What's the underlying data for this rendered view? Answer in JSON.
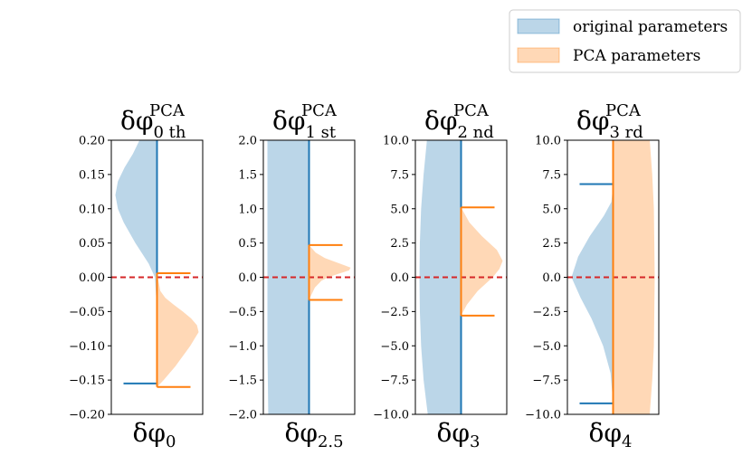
{
  "chart_data": [
    {
      "type": "violin",
      "title": {
        "base": "δφ",
        "sub": "0 th",
        "sup": "PCA"
      },
      "xlabel": {
        "base": "δφ",
        "sub": "0"
      },
      "ylim": [
        -0.2,
        0.2
      ],
      "yticks": [
        -0.2,
        -0.15,
        -0.1,
        -0.05,
        0.0,
        0.05,
        0.1,
        0.15,
        0.2
      ],
      "ytick_labels": [
        "−0.20",
        "−0.15",
        "−0.10",
        "−0.05",
        "0.00",
        "0.05",
        "0.10",
        "0.15",
        "0.20"
      ],
      "reference_line": 0.0,
      "original": {
        "min": -0.155,
        "max": 0.2,
        "profile": [
          [
            -0.165,
            0.0
          ],
          [
            -0.15,
            0.0
          ],
          [
            -0.1,
            0.0
          ],
          [
            -0.05,
            0.0
          ],
          [
            0.0,
            0.05
          ],
          [
            0.02,
            0.2
          ],
          [
            0.05,
            0.52
          ],
          [
            0.08,
            0.8
          ],
          [
            0.1,
            0.94
          ],
          [
            0.12,
            1.0
          ],
          [
            0.14,
            0.94
          ],
          [
            0.16,
            0.78
          ],
          [
            0.18,
            0.58
          ],
          [
            0.2,
            0.42
          ]
        ]
      },
      "pca": {
        "min": -0.16,
        "max": 0.006,
        "profile": [
          [
            -0.16,
            0.0
          ],
          [
            -0.15,
            0.16
          ],
          [
            -0.14,
            0.3
          ],
          [
            -0.13,
            0.44
          ],
          [
            -0.12,
            0.56
          ],
          [
            -0.11,
            0.68
          ],
          [
            -0.1,
            0.8
          ],
          [
            -0.09,
            0.9
          ],
          [
            -0.08,
            1.0
          ],
          [
            -0.07,
            0.96
          ],
          [
            -0.06,
            0.82
          ],
          [
            -0.05,
            0.62
          ],
          [
            -0.04,
            0.4
          ],
          [
            -0.03,
            0.2
          ],
          [
            -0.02,
            0.08
          ],
          [
            0.006,
            0.0
          ]
        ]
      }
    },
    {
      "type": "violin",
      "title": {
        "base": "δφ",
        "sub": "1 st",
        "sup": "PCA"
      },
      "xlabel": {
        "base": "δφ",
        "sub": "2.5"
      },
      "ylim": [
        -2.0,
        2.0
      ],
      "yticks": [
        -2.0,
        -1.5,
        -1.0,
        -0.5,
        0.0,
        0.5,
        1.0,
        1.5,
        2.0
      ],
      "ytick_labels": [
        "−2.0",
        "−1.5",
        "−1.0",
        "−0.5",
        "0.0",
        "0.5",
        "1.0",
        "1.5",
        "2.0"
      ],
      "reference_line": 0.0,
      "original": {
        "min": -2.0,
        "max": 2.0,
        "profile": [
          [
            -2.0,
            0.98
          ],
          [
            -1.5,
            0.99
          ],
          [
            -1.0,
            1.0
          ],
          [
            0.0,
            1.0
          ],
          [
            1.0,
            1.0
          ],
          [
            2.0,
            1.0
          ]
        ]
      },
      "pca": {
        "min": -0.33,
        "max": 0.47,
        "profile": [
          [
            -0.33,
            0.0
          ],
          [
            -0.25,
            0.06
          ],
          [
            -0.15,
            0.14
          ],
          [
            -0.05,
            0.3
          ],
          [
            0.0,
            0.46
          ],
          [
            0.05,
            0.7
          ],
          [
            0.1,
            0.96
          ],
          [
            0.14,
            1.0
          ],
          [
            0.2,
            0.74
          ],
          [
            0.28,
            0.38
          ],
          [
            0.36,
            0.16
          ],
          [
            0.47,
            0.0
          ]
        ]
      }
    },
    {
      "type": "violin",
      "title": {
        "base": "δφ",
        "sub": "2 nd",
        "sup": "PCA"
      },
      "xlabel": {
        "base": "δφ",
        "sub": "3"
      },
      "ylim": [
        -10.0,
        10.0
      ],
      "yticks": [
        -10.0,
        -7.5,
        -5.0,
        -2.5,
        0.0,
        2.5,
        5.0,
        7.5,
        10.0
      ],
      "ytick_labels": [
        "−10.0",
        "−7.5",
        "−5.0",
        "−2.5",
        "0.0",
        "2.5",
        "5.0",
        "7.5",
        "10.0"
      ],
      "reference_line": 0.0,
      "original": {
        "min": -10.0,
        "max": 10.0,
        "profile": [
          [
            -10.0,
            0.8
          ],
          [
            -7.5,
            0.9
          ],
          [
            -5.0,
            0.96
          ],
          [
            -2.5,
            0.99
          ],
          [
            0.0,
            1.0
          ],
          [
            2.5,
            0.99
          ],
          [
            5.0,
            0.96
          ],
          [
            7.5,
            0.9
          ],
          [
            10.0,
            0.82
          ]
        ]
      },
      "pca": {
        "min": -2.8,
        "max": 5.1,
        "profile": [
          [
            -2.8,
            0.0
          ],
          [
            -2.0,
            0.14
          ],
          [
            -1.0,
            0.4
          ],
          [
            0.0,
            0.76
          ],
          [
            0.6,
            0.92
          ],
          [
            1.2,
            1.0
          ],
          [
            2.0,
            0.86
          ],
          [
            3.0,
            0.5
          ],
          [
            4.0,
            0.2
          ],
          [
            5.1,
            0.0
          ]
        ]
      }
    },
    {
      "type": "violin",
      "title": {
        "base": "δφ",
        "sub": "3 rd",
        "sup": "PCA"
      },
      "xlabel": {
        "base": "δφ",
        "sub": "4"
      },
      "ylim": [
        -10.0,
        10.0
      ],
      "yticks": [
        -10.0,
        -7.5,
        -5.0,
        -2.5,
        0.0,
        2.5,
        5.0,
        7.5,
        10.0
      ],
      "ytick_labels": [
        "−10.0",
        "−7.5",
        "−5.0",
        "−2.5",
        "0.0",
        "2.5",
        "5.0",
        "7.5",
        "10.0"
      ],
      "reference_line": 0.0,
      "original": {
        "min": -9.2,
        "max": 6.8,
        "profile": [
          [
            -9.2,
            0.0
          ],
          [
            -7.0,
            0.06
          ],
          [
            -5.0,
            0.24
          ],
          [
            -3.0,
            0.52
          ],
          [
            -1.5,
            0.78
          ],
          [
            0.0,
            1.0
          ],
          [
            1.5,
            0.84
          ],
          [
            3.0,
            0.56
          ],
          [
            4.5,
            0.22
          ],
          [
            5.5,
            0.04
          ],
          [
            6.8,
            0.0
          ]
        ]
      },
      "pca": {
        "min": -10.0,
        "max": 10.0,
        "profile": [
          [
            -10.0,
            0.88
          ],
          [
            -7.5,
            0.94
          ],
          [
            -5.0,
            0.98
          ],
          [
            0.0,
            1.0
          ],
          [
            5.0,
            0.98
          ],
          [
            7.5,
            0.94
          ],
          [
            10.0,
            0.88
          ]
        ]
      }
    }
  ],
  "legend": {
    "position": "top-right",
    "items": [
      {
        "label": "original parameters",
        "color": "#1f77b4"
      },
      {
        "label": "PCA parameters",
        "color": "#ff7f0e"
      }
    ]
  },
  "colors": {
    "original_fill": "#1f77b4",
    "pca_fill": "#ff7f0e",
    "reference_line": "#d62728",
    "axes": "#000000"
  }
}
